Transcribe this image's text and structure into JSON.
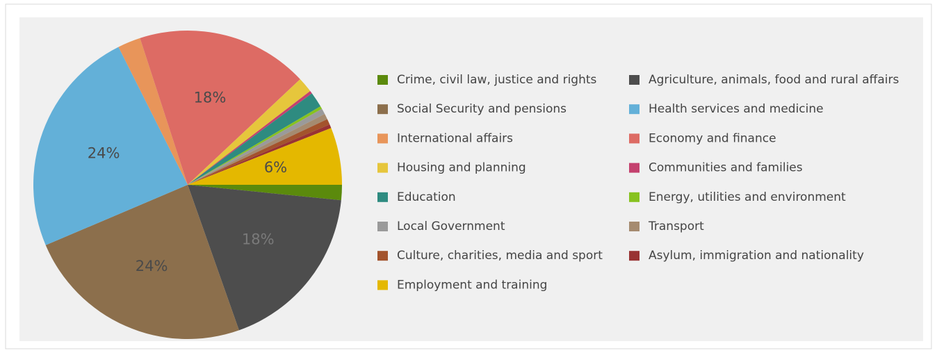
{
  "chart_data": {
    "type": "pie",
    "categories": [
      "Crime, civil law, justice and rights",
      "Agriculture, animals, food and rural affairs",
      "Social Security and pensions",
      "Health services and medicine",
      "International affairs",
      "Economy and finance",
      "Housing and planning",
      "Communities and families",
      "Education",
      "Energy, utilities and environment",
      "Local Government",
      "Transport",
      "Culture, charities, media and sport",
      "Asylum, immigration and nationality",
      "Employment and training"
    ],
    "values": [
      1.6,
      18,
      24,
      24,
      2.4,
      18,
      1.6,
      0.3,
      1.6,
      0.3,
      0.6,
      0.6,
      0.6,
      0.4,
      6
    ],
    "value_labels": [
      null,
      "18%",
      "24%",
      "24%",
      null,
      "18%",
      null,
      null,
      null,
      null,
      null,
      null,
      null,
      null,
      "6%"
    ],
    "colors": [
      "#5b8a0c",
      "#4d4d4d",
      "#8c6f4c",
      "#63b0d8",
      "#e8955a",
      "#dd6b64",
      "#e6c63c",
      "#c4416e",
      "#2e8b80",
      "#87c21f",
      "#9a9a9a",
      "#a58b70",
      "#a3532c",
      "#993333",
      "#e4b800"
    ],
    "legend": "right"
  }
}
